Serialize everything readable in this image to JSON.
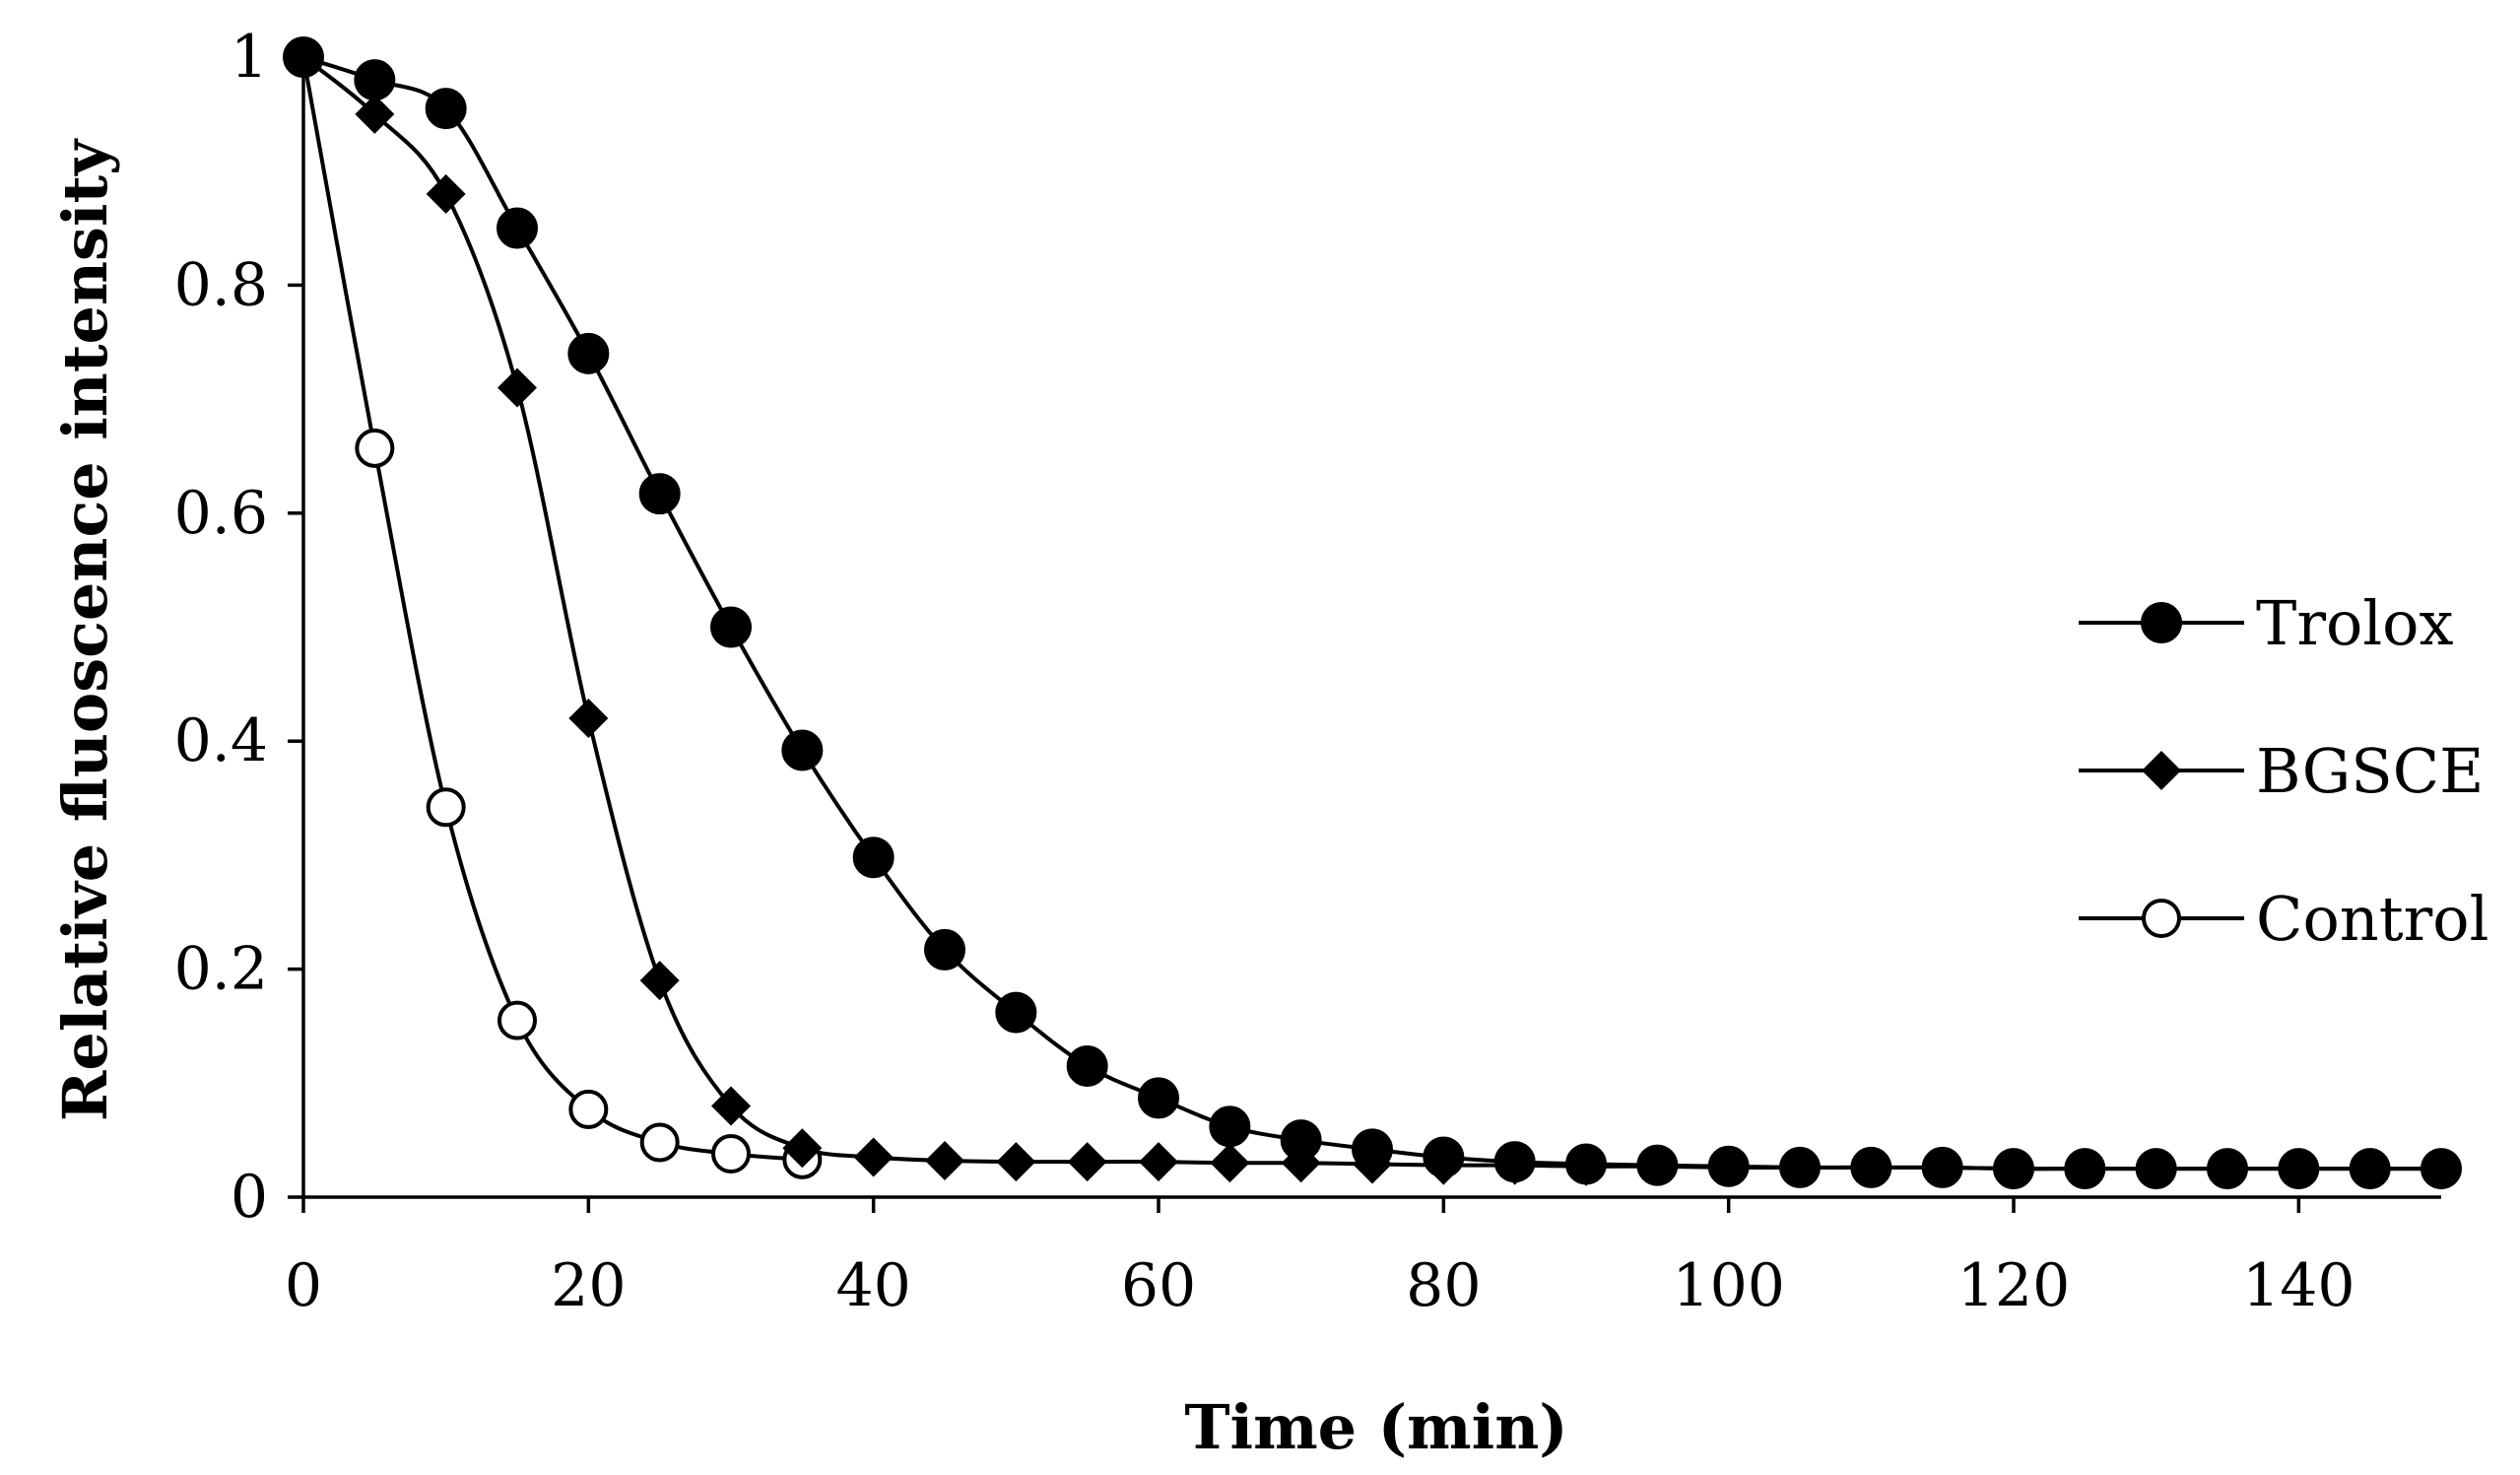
{
  "chart_data": {
    "type": "line",
    "title": "",
    "xlabel": "Time (min)",
    "ylabel": "Relative fluoscence intensity",
    "xlim": [
      0,
      150
    ],
    "ylim": [
      0,
      1
    ],
    "xticks": [
      0,
      20,
      40,
      60,
      80,
      100,
      120,
      140
    ],
    "yticks": [
      0,
      0.2,
      0.4,
      0.6,
      0.8,
      1
    ],
    "ytick_labels": [
      "0",
      "0.2",
      "0.4",
      "0.6",
      "0.8",
      "1"
    ],
    "grid": false,
    "legend_position": "right",
    "series": [
      {
        "name": "Trolox",
        "marker": "filled-circle",
        "x": [
          0,
          5,
          10,
          15,
          20,
          25,
          30,
          35,
          40,
          45,
          50,
          55,
          60,
          65,
          70,
          75,
          80,
          85,
          90,
          95,
          100,
          105,
          110,
          115,
          120,
          125,
          130,
          135,
          140,
          145,
          150
        ],
        "values": [
          1.0,
          0.98,
          0.955,
          0.85,
          0.74,
          0.617,
          0.5,
          0.392,
          0.298,
          0.217,
          0.162,
          0.115,
          0.087,
          0.062,
          0.05,
          0.042,
          0.035,
          0.031,
          0.029,
          0.028,
          0.027,
          0.026,
          0.026,
          0.026,
          0.025,
          0.025,
          0.025,
          0.025,
          0.025,
          0.025,
          0.025
        ]
      },
      {
        "name": "BGSCE",
        "marker": "filled-diamond",
        "x": [
          0,
          5,
          10,
          15,
          20,
          25,
          30,
          35,
          40,
          45,
          50,
          55,
          60,
          65,
          70,
          75,
          80,
          85,
          90,
          95,
          100,
          105,
          110,
          115,
          120,
          125,
          130,
          135,
          140,
          145,
          150
        ],
        "values": [
          1.0,
          0.95,
          0.88,
          0.71,
          0.42,
          0.19,
          0.08,
          0.043,
          0.035,
          0.032,
          0.031,
          0.031,
          0.031,
          0.03,
          0.03,
          0.029,
          0.028,
          0.028,
          0.027,
          0.027,
          0.026,
          0.026,
          0.026,
          0.026,
          0.025,
          0.025,
          0.025,
          0.025,
          0.025,
          0.025,
          0.025
        ]
      },
      {
        "name": "Control",
        "marker": "open-circle",
        "x": [
          0,
          5,
          10,
          15,
          20,
          25,
          30,
          35
        ],
        "values": [
          1.0,
          0.657,
          0.342,
          0.155,
          0.077,
          0.048,
          0.038,
          0.033
        ]
      }
    ]
  }
}
